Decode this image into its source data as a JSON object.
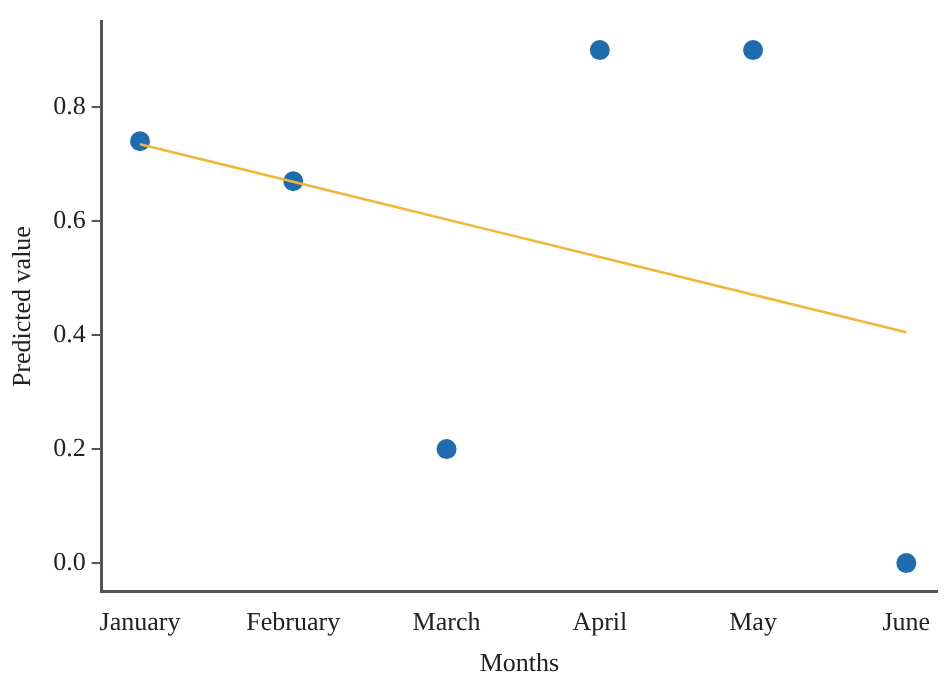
{
  "chart_data": {
    "type": "scatter",
    "xlabel": "Months",
    "ylabel": "Predicted value",
    "categories": [
      "January",
      "February",
      "March",
      "April",
      "May",
      "June"
    ],
    "series": [
      {
        "type": "scatter",
        "color": "#1f6db0",
        "marker": "circle",
        "values": [
          0.74,
          0.67,
          0.2,
          0.9,
          0.9,
          0.0
        ]
      },
      {
        "type": "line",
        "color": "#f2b63a",
        "x": [
          "January",
          "June"
        ],
        "values": [
          0.735,
          0.405
        ],
        "marker": "none",
        "line_style": "solid"
      }
    ],
    "ylim": [
      -0.05,
      0.95
    ],
    "yticks": [
      {
        "value": 0,
        "label": "0.0"
      },
      {
        "value": 0.2,
        "label": "0.2"
      },
      {
        "value": 0.4,
        "label": "0.4"
      },
      {
        "value": 0.6,
        "label": "0.6"
      },
      {
        "value": 0.8,
        "label": "0.8"
      }
    ],
    "grid": false,
    "legend": false
  }
}
